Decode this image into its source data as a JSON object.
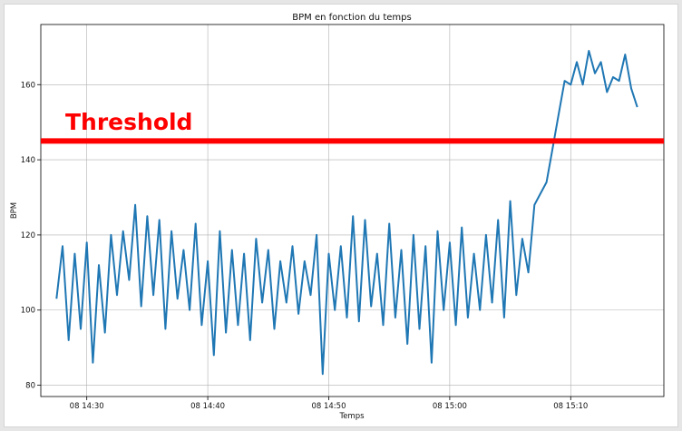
{
  "chart_data": {
    "type": "line",
    "title": "BPM en fonction du temps",
    "xlabel": "Temps",
    "ylabel": "BPM",
    "x_tick_labels": [
      "08 14:30",
      "08 14:40",
      "08 14:50",
      "08 15:00",
      "08 15:10"
    ],
    "y_tick_labels": [
      "80",
      "100",
      "120",
      "140",
      "160"
    ],
    "ylim": [
      77,
      176
    ],
    "grid": true,
    "line_color": "#1f77b4",
    "threshold": {
      "value": 145,
      "label": "Threshold",
      "color": "#ff0000"
    },
    "series": [
      {
        "x": [
          "14:27:30",
          "14:28:00",
          "14:28:30",
          "14:29:00",
          "14:29:30",
          "14:30:00",
          "14:30:30",
          "14:31:00",
          "14:31:30",
          "14:32:00",
          "14:32:30",
          "14:33:00",
          "14:33:30",
          "14:34:00",
          "14:34:30",
          "14:35:00",
          "14:35:30",
          "14:36:00",
          "14:36:30",
          "14:37:00",
          "14:37:30",
          "14:38:00",
          "14:38:30",
          "14:39:00",
          "14:39:30",
          "14:40:00",
          "14:40:30",
          "14:41:00",
          "14:41:30",
          "14:42:00",
          "14:42:30",
          "14:43:00",
          "14:43:30",
          "14:44:00",
          "14:44:30",
          "14:45:00",
          "14:45:30",
          "14:46:00",
          "14:46:30",
          "14:47:00",
          "14:47:30",
          "14:48:00",
          "14:48:30",
          "14:49:00",
          "14:49:30",
          "14:50:00",
          "14:50:30",
          "14:51:00",
          "14:51:30",
          "14:52:00",
          "14:52:30",
          "14:53:00",
          "14:53:30",
          "14:54:00",
          "14:54:30",
          "14:55:00",
          "14:55:30",
          "14:56:00",
          "14:56:30",
          "14:57:00",
          "14:57:30",
          "14:58:00",
          "14:58:30",
          "14:59:00",
          "14:59:30",
          "15:00:00",
          "15:00:30",
          "15:01:00",
          "15:01:30",
          "15:02:00",
          "15:02:30",
          "15:03:00",
          "15:03:30",
          "15:04:00",
          "15:04:30",
          "15:05:00",
          "15:05:30",
          "15:06:00",
          "15:06:30",
          "15:07:00",
          "15:07:30",
          "15:08:00",
          "15:08:30",
          "15:09:00",
          "15:09:30",
          "15:10:00",
          "15:10:30",
          "15:11:00",
          "15:11:30",
          "15:12:00",
          "15:12:30",
          "15:13:00",
          "15:13:30",
          "15:14:00",
          "15:14:30",
          "15:15:00",
          "15:15:30"
        ],
        "y": [
          103,
          117,
          92,
          115,
          95,
          118,
          86,
          112,
          94,
          120,
          104,
          121,
          108,
          128,
          101,
          125,
          104,
          124,
          95,
          121,
          103,
          116,
          100,
          123,
          96,
          113,
          88,
          121,
          94,
          116,
          96,
          115,
          92,
          119,
          102,
          116,
          95,
          113,
          102,
          117,
          99,
          113,
          104,
          120,
          83,
          115,
          100,
          117,
          98,
          125,
          97,
          124,
          101,
          115,
          96,
          123,
          98,
          116,
          91,
          120,
          95,
          117,
          86,
          121,
          100,
          118,
          96,
          122,
          98,
          115,
          100,
          120,
          102,
          124,
          98,
          129,
          104,
          119,
          110,
          128,
          131,
          134,
          143,
          152,
          161,
          160,
          166,
          160,
          169,
          163,
          166,
          158,
          162,
          161,
          168,
          159,
          154
        ]
      }
    ]
  }
}
